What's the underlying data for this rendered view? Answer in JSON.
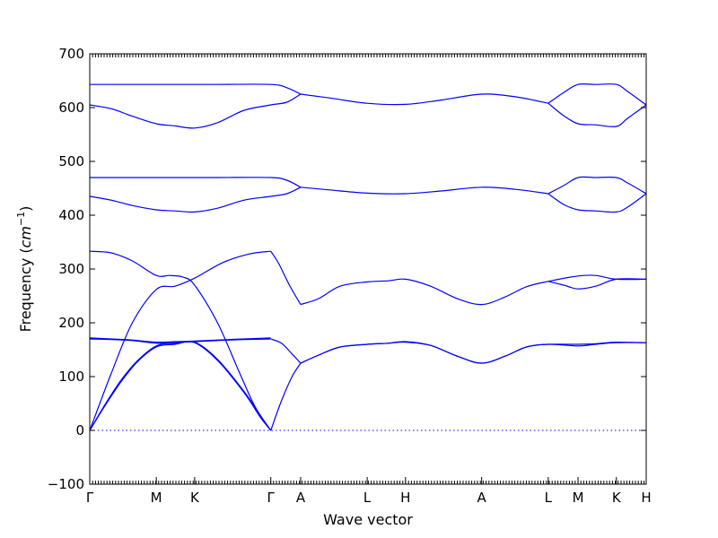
{
  "chart_data": {
    "type": "line",
    "title": "",
    "xlabel": "Wave vector",
    "ylabel": "Frequency (",
    "ylabel_math": "cm",
    "ylabel_sup": "−1",
    "ylabel_close": ")",
    "ylim": [
      -100,
      700
    ],
    "yticks": [
      -100,
      0,
      100,
      200,
      300,
      400,
      500,
      600,
      700
    ],
    "grid": false,
    "legend": "none",
    "xlim": [
      0,
      10.45
    ],
    "high_symmetry_points": [
      {
        "label": "Γ",
        "x": 0
      },
      {
        "label": "M",
        "x": 1.25
      },
      {
        "label": "K",
        "x": 1.97
      },
      {
        "label": "Γ",
        "x": 3.4
      },
      {
        "label": "A",
        "x": 3.96
      },
      {
        "label": "L",
        "x": 5.21
      },
      {
        "label": "H",
        "x": 5.93
      },
      {
        "label": "A",
        "x": 7.36
      },
      {
        "label": "L",
        "x": 8.61
      },
      {
        "label": "M",
        "x": 9.17
      },
      {
        "label": "K",
        "x": 9.89
      },
      {
        "label": "H",
        "x": 10.45
      }
    ],
    "zero_line": 0,
    "color": "#0000ff",
    "series": [
      {
        "x": [
          0,
          0.3,
          0.6,
          0.9,
          1.25,
          1.6,
          1.97,
          2.4,
          2.9,
          3.2,
          3.4
        ],
        "y": [
          0,
          50,
          95,
          130,
          157,
          162,
          163,
          130,
          70,
          25,
          0
        ]
      },
      {
        "x": [
          0,
          0.3,
          0.6,
          0.9,
          1.25,
          1.6,
          1.97,
          2.4,
          2.9,
          3.2,
          3.4
        ],
        "y": [
          0,
          48,
          92,
          128,
          155,
          160,
          164,
          132,
          72,
          28,
          0
        ]
      },
      {
        "x": [
          0,
          0.4,
          0.8,
          1.25,
          1.6,
          1.97,
          2.4,
          2.9,
          3.4
        ],
        "y": [
          170,
          169,
          167,
          162,
          163,
          165,
          167,
          169,
          170
        ]
      },
      {
        "x": [
          0,
          0.4,
          0.8,
          1.25,
          1.6,
          1.97,
          2.4,
          2.9,
          3.4
        ],
        "y": [
          172,
          170,
          168,
          164,
          165,
          166,
          168,
          170,
          172
        ]
      },
      {
        "x": [
          0,
          0.4,
          0.8,
          1.25,
          1.6,
          1.97,
          2.5,
          3.0,
          3.4
        ],
        "y": [
          0,
          105,
          200,
          262,
          268,
          283,
          312,
          328,
          333
        ]
      },
      {
        "x": [
          0,
          0.4,
          0.8,
          1.25,
          1.5,
          1.75,
          1.97,
          2.4,
          2.8,
          3.1,
          3.4
        ],
        "y": [
          333,
          330,
          315,
          288,
          288,
          285,
          270,
          200,
          110,
          45,
          0
        ]
      },
      {
        "x": [
          3.4,
          3.6,
          3.8,
          3.96
        ],
        "y": [
          0,
          55,
          100,
          125
        ]
      },
      {
        "x": [
          3.4,
          3.6,
          3.8,
          3.96
        ],
        "y": [
          170,
          162,
          142,
          125
        ]
      },
      {
        "x": [
          3.4,
          3.55,
          3.75,
          3.96
        ],
        "y": [
          333,
          310,
          270,
          234
        ]
      },
      {
        "x": [
          3.96,
          4.3,
          4.7,
          5.21,
          5.6,
          5.93,
          6.4,
          6.9,
          7.36,
          7.8,
          8.2,
          8.61,
          9.17,
          9.5,
          9.89,
          10.45
        ],
        "y": [
          125,
          140,
          155,
          160,
          162,
          164,
          158,
          138,
          125,
          138,
          155,
          160,
          160,
          161,
          164,
          163
        ]
      },
      {
        "x": [
          3.96,
          4.3,
          4.7,
          5.21,
          5.6,
          5.93,
          6.4,
          6.9,
          7.36,
          7.8,
          8.2,
          8.61,
          9.17,
          9.5,
          9.89,
          10.45
        ],
        "y": [
          125,
          140,
          155,
          160,
          162,
          165,
          158,
          138,
          125,
          138,
          155,
          160,
          157,
          160,
          163,
          163
        ]
      },
      {
        "x": [
          3.96,
          4.3,
          4.7,
          5.21,
          5.6,
          5.93,
          6.4,
          6.9,
          7.36,
          7.8,
          8.2,
          8.61,
          9.17,
          9.5,
          9.89,
          10.45
        ],
        "y": [
          234,
          245,
          268,
          276,
          278,
          281,
          268,
          245,
          234,
          248,
          267,
          277,
          287,
          288,
          281,
          281
        ]
      },
      {
        "x": [
          8.61,
          8.9,
          9.17,
          9.5,
          9.89,
          10.45
        ],
        "y": [
          277,
          270,
          263,
          268,
          281,
          281
        ]
      },
      {
        "x": [
          0,
          0.4,
          0.8,
          1.25,
          1.6,
          1.97,
          2.4,
          2.9,
          3.4,
          3.7,
          3.96
        ],
        "y": [
          435,
          428,
          418,
          410,
          408,
          406,
          413,
          428,
          435,
          440,
          452
        ]
      },
      {
        "x": [
          0,
          0.8,
          1.6,
          2.4,
          3.4,
          3.7,
          3.96
        ],
        "y": [
          470,
          470,
          470,
          470,
          470,
          465,
          452
        ]
      },
      {
        "x": [
          3.96,
          4.5,
          5.21,
          5.93,
          6.6,
          7.36,
          8.0,
          8.61
        ],
        "y": [
          452,
          447,
          441,
          440,
          445,
          452,
          448,
          440
        ]
      },
      {
        "x": [
          8.61,
          8.9,
          9.17,
          9.5,
          9.89,
          10.1,
          10.45
        ],
        "y": [
          440,
          455,
          470,
          470,
          470,
          460,
          440
        ]
      },
      {
        "x": [
          8.61,
          8.9,
          9.17,
          9.5,
          9.89,
          10.1,
          10.45
        ],
        "y": [
          440,
          420,
          410,
          408,
          406,
          415,
          440
        ]
      },
      {
        "x": [
          0,
          0.4,
          0.8,
          1.25,
          1.6,
          1.97,
          2.4,
          2.9,
          3.4,
          3.7,
          3.96
        ],
        "y": [
          605,
          598,
          584,
          570,
          566,
          562,
          572,
          595,
          605,
          610,
          625
        ]
      },
      {
        "x": [
          0,
          0.8,
          1.6,
          2.4,
          3.4,
          3.7,
          3.96
        ],
        "y": [
          643,
          643,
          643,
          643,
          643,
          637,
          625
        ]
      },
      {
        "x": [
          3.96,
          4.5,
          5.21,
          5.93,
          6.6,
          7.36,
          8.0,
          8.61
        ],
        "y": [
          625,
          618,
          608,
          606,
          614,
          625,
          620,
          608
        ]
      },
      {
        "x": [
          8.61,
          8.9,
          9.17,
          9.5,
          9.89,
          10.1,
          10.45
        ],
        "y": [
          608,
          628,
          643,
          643,
          643,
          630,
          605
        ]
      },
      {
        "x": [
          8.61,
          8.9,
          9.17,
          9.5,
          9.89,
          10.1,
          10.45
        ],
        "y": [
          608,
          585,
          570,
          568,
          565,
          580,
          605
        ]
      }
    ]
  }
}
